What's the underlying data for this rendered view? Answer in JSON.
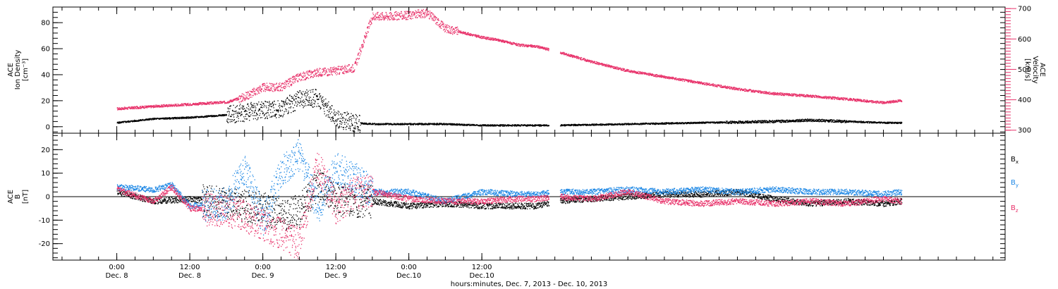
{
  "chart_data": [
    {
      "type": "scatter",
      "panel": "top",
      "left_axis": {
        "label_lines": [
          "ACE",
          "Ion Density",
          "[cm⁻³]"
        ],
        "range": [
          -5,
          92
        ],
        "ticks": [
          0,
          20,
          40,
          60,
          80
        ]
      },
      "right_axis": {
        "label_lines": [
          "ACE",
          "Velocity",
          "[km/s]"
        ],
        "range": [
          290,
          705
        ],
        "ticks": [
          300,
          400,
          500,
          600,
          700
        ],
        "color": "#e8336b"
      },
      "series": [
        {
          "axis": "left",
          "color": "#000000",
          "points": [
            [
              0,
              3
            ],
            [
              6,
              6
            ],
            [
              12,
              7
            ],
            [
              18,
              9
            ],
            [
              24,
              13
            ],
            [
              27,
              14
            ],
            [
              30,
              21
            ],
            [
              33,
              22
            ],
            [
              36,
              6
            ],
            [
              39,
              3
            ],
            [
              42,
              2
            ],
            [
              48,
              2
            ],
            [
              54,
              2
            ],
            [
              60,
              1
            ],
            [
              66,
              1
            ],
            [
              69,
              1
            ],
            [
              72,
              1
            ],
            [
              84,
              2
            ],
            [
              96,
              3
            ],
            [
              108,
              4
            ],
            [
              114,
              5
            ],
            [
              120,
              4
            ],
            [
              126,
              3
            ],
            [
              129,
              3
            ]
          ]
        },
        {
          "axis": "right",
          "color": "#e8336b",
          "points": [
            [
              0,
              370
            ],
            [
              6,
              378
            ],
            [
              12,
              385
            ],
            [
              18,
              392
            ],
            [
              21,
              410
            ],
            [
              24,
              440
            ],
            [
              27,
              442
            ],
            [
              30,
              475
            ],
            [
              33,
              490
            ],
            [
              36,
              495
            ],
            [
              39,
              505
            ],
            [
              42,
              675
            ],
            [
              45,
              675
            ],
            [
              48,
              678
            ],
            [
              51,
              685
            ],
            [
              54,
              635
            ],
            [
              57,
              620
            ],
            [
              60,
              605
            ],
            [
              63,
              595
            ],
            [
              66,
              580
            ],
            [
              69,
              575
            ],
            [
              72,
              560
            ],
            [
              78,
              525
            ],
            [
              84,
              495
            ],
            [
              90,
              475
            ],
            [
              96,
              455
            ],
            [
              102,
              435
            ],
            [
              108,
              420
            ],
            [
              114,
              412
            ],
            [
              120,
              402
            ],
            [
              126,
              390
            ],
            [
              129,
              398
            ]
          ]
        }
      ]
    },
    {
      "type": "scatter",
      "panel": "bottom",
      "left_axis": {
        "label_lines": [
          "ACE",
          "B",
          "[nT]"
        ],
        "range": [
          -27,
          27
        ],
        "ticks": [
          -20,
          -10,
          0,
          10,
          20
        ]
      },
      "series": [
        {
          "name": "Bx",
          "label_main": "B",
          "label_sub": "x",
          "color": "#000000",
          "points": [
            [
              0,
              2
            ],
            [
              6,
              -2
            ],
            [
              12,
              -1
            ],
            [
              18,
              -3
            ],
            [
              24,
              -5
            ],
            [
              27,
              -8
            ],
            [
              30,
              -6
            ],
            [
              33,
              5
            ],
            [
              36,
              -1
            ],
            [
              39,
              -2
            ],
            [
              42,
              -2
            ],
            [
              48,
              -4
            ],
            [
              54,
              -3
            ],
            [
              60,
              -4
            ],
            [
              66,
              -4
            ],
            [
              69,
              -4
            ],
            [
              72,
              -2
            ],
            [
              78,
              -1
            ],
            [
              84,
              0
            ],
            [
              90,
              1
            ],
            [
              96,
              1
            ],
            [
              102,
              2
            ],
            [
              108,
              -1
            ],
            [
              114,
              -3
            ],
            [
              120,
              -2
            ],
            [
              126,
              -3
            ],
            [
              129,
              -2
            ]
          ]
        },
        {
          "name": "By",
          "label_main": "B",
          "label_sub": "y",
          "color": "#1e88e5",
          "points": [
            [
              0,
              4
            ],
            [
              6,
              3
            ],
            [
              9,
              5
            ],
            [
              12,
              -4
            ],
            [
              18,
              -3
            ],
            [
              21,
              12
            ],
            [
              24,
              -10
            ],
            [
              27,
              10
            ],
            [
              30,
              18
            ],
            [
              33,
              -5
            ],
            [
              36,
              12
            ],
            [
              39,
              8
            ],
            [
              42,
              2
            ],
            [
              48,
              2
            ],
            [
              54,
              -2
            ],
            [
              60,
              2
            ],
            [
              66,
              1
            ],
            [
              69,
              1
            ],
            [
              72,
              2
            ],
            [
              78,
              2
            ],
            [
              84,
              3
            ],
            [
              90,
              2
            ],
            [
              96,
              3
            ],
            [
              102,
              2
            ],
            [
              108,
              3
            ],
            [
              114,
              2
            ],
            [
              120,
              2
            ],
            [
              126,
              1
            ],
            [
              129,
              2
            ]
          ]
        },
        {
          "name": "Bz",
          "label_main": "B",
          "label_sub": "z",
          "color": "#e8336b",
          "points": [
            [
              0,
              3
            ],
            [
              6,
              -2
            ],
            [
              9,
              4
            ],
            [
              12,
              -5
            ],
            [
              18,
              -6
            ],
            [
              21,
              -8
            ],
            [
              24,
              -12
            ],
            [
              27,
              -16
            ],
            [
              30,
              -20
            ],
            [
              33,
              14
            ],
            [
              36,
              -5
            ],
            [
              39,
              2
            ],
            [
              42,
              2
            ],
            [
              48,
              -1
            ],
            [
              54,
              -2
            ],
            [
              60,
              -2
            ],
            [
              66,
              -1
            ],
            [
              69,
              -1
            ],
            [
              72,
              0
            ],
            [
              78,
              -1
            ],
            [
              84,
              2
            ],
            [
              90,
              -2
            ],
            [
              96,
              -3
            ],
            [
              102,
              -2
            ],
            [
              108,
              -3
            ],
            [
              114,
              -2
            ],
            [
              120,
              -3
            ],
            [
              126,
              -1
            ],
            [
              129,
              -2
            ]
          ]
        }
      ]
    }
  ],
  "x_axis": {
    "unit": "hours",
    "range": [
      -10.5,
      146
    ],
    "ticks": [
      {
        "t": 0,
        "time": "0:00",
        "day": "Dec. 8"
      },
      {
        "t": 12,
        "time": "12:00",
        "day": "Dec. 8"
      },
      {
        "t": 24,
        "time": "0:00",
        "day": "Dec. 9"
      },
      {
        "t": 36,
        "time": "12:00",
        "day": "Dec. 9"
      },
      {
        "t": 48,
        "time": "0:00",
        "day": "Dec.10"
      },
      {
        "t": 60,
        "time": "12:00",
        "day": "Dec.10"
      }
    ],
    "xlabel": "hours:minutes, Dec. 7, 2013 - Dec. 10, 2013"
  }
}
